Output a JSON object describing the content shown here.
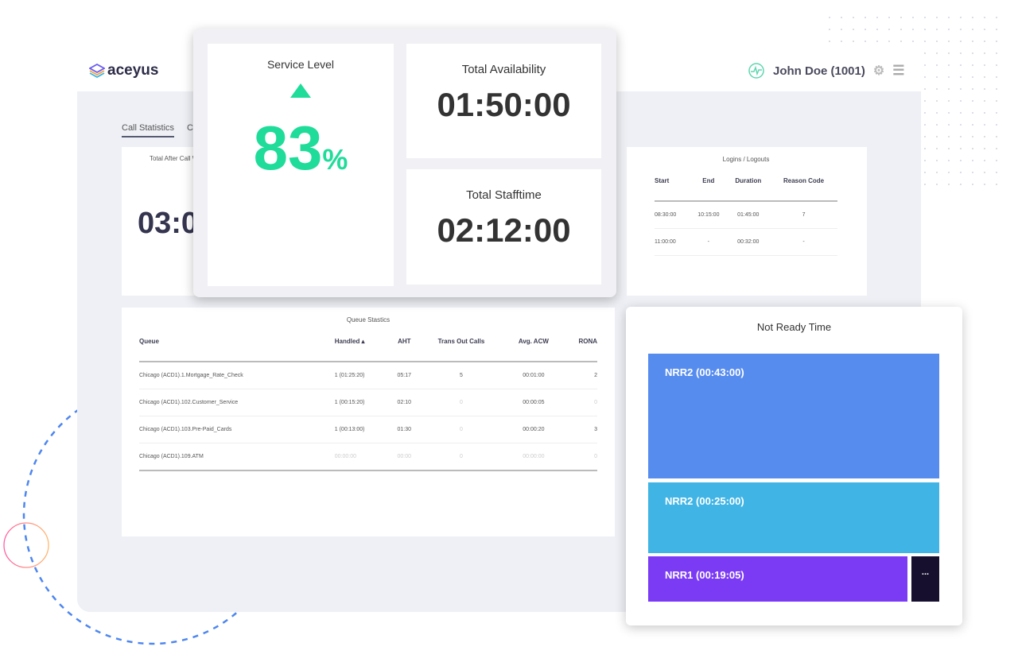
{
  "brand": {
    "name": "aceyus"
  },
  "user": {
    "name": "John Doe (1001)",
    "icon": "agent-status-icon"
  },
  "tabs": [
    {
      "label": "Call Statistics",
      "active": true
    },
    {
      "label": "Ca"
    }
  ],
  "after_call_card": {
    "title": "Total After Call W",
    "value": "03:0"
  },
  "overlay": {
    "service_level": {
      "title": "Service Level",
      "value": "83",
      "unit": "%",
      "trend": "up",
      "color": "#1fdc9a"
    },
    "total_availability": {
      "title": "Total Availability",
      "value": "01:50:00"
    },
    "total_stafftime": {
      "title": "Total Stafftime",
      "value": "02:12:00"
    }
  },
  "logins": {
    "title": "Logins / Logouts",
    "columns": [
      "Start",
      "End",
      "Duration",
      "Reason Code"
    ],
    "rows": [
      [
        "08:30:00",
        "10:15:00",
        "01:45:00",
        "7"
      ],
      [
        "11:00:00",
        "-",
        "00:32:00",
        "-"
      ]
    ]
  },
  "queue": {
    "title": "Queue Stastics",
    "columns": [
      "Queue",
      "Handled ▴",
      "AHT",
      "Trans Out Calls",
      "Avg. ACW",
      "RONA"
    ],
    "rows": [
      [
        "Chicago (ACD1).1.Mortgage_Rate_Check",
        "1 (01:25:20)",
        "05:17",
        "5",
        "00:01:00",
        "2"
      ],
      [
        "Chicago (ACD1).102.Customer_Service",
        "1 (00:15:20)",
        "02:10",
        "0",
        "00:00:05",
        "0"
      ],
      [
        "Chicago (ACD1).103.Pre-Paid_Cards",
        "1 (00:13:00)",
        "01:30",
        "0",
        "00:00:20",
        "3"
      ],
      [
        "Chicago (ACD1).109.ATM",
        "00:00:00",
        "00:00",
        "0",
        "00:00:00",
        "0"
      ]
    ]
  },
  "not_ready": {
    "title": "Not Ready Time",
    "tiles": [
      {
        "label": "NRR2 (00:43:00)",
        "color": "#578cef"
      },
      {
        "label": "NRR2 (00:25:00)",
        "color": "#40b4e5"
      },
      {
        "label": "NRR1 (00:19:05)",
        "color": "#7b3bf5"
      },
      {
        "label": "...",
        "color": "#170f2e"
      }
    ]
  }
}
